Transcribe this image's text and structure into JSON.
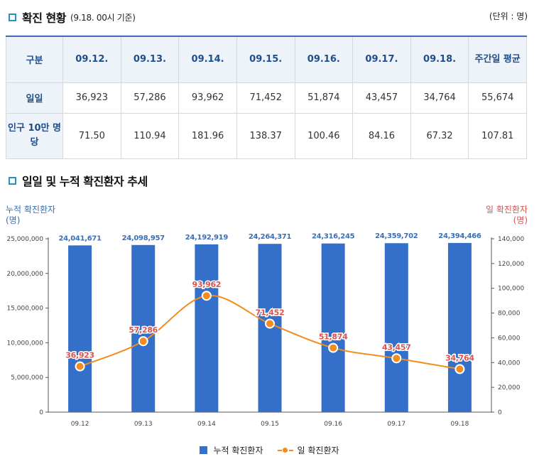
{
  "status": {
    "title": "확진 현황",
    "subtitle": "(9.18. 00시 기준)",
    "unit": "(단위 : 명)"
  },
  "table": {
    "headers": [
      "구분",
      "09.12.",
      "09.13.",
      "09.14.",
      "09.15.",
      "09.16.",
      "09.17.",
      "09.18.",
      "주간일 평균"
    ],
    "rows": [
      {
        "label": "일일",
        "values": [
          "36,923",
          "57,286",
          "93,962",
          "71,452",
          "51,874",
          "43,457",
          "34,764",
          "55,674"
        ]
      },
      {
        "label": "인구 10만 명 당",
        "values": [
          "71.50",
          "110.94",
          "181.96",
          "138.37",
          "100.46",
          "84.16",
          "67.32",
          "107.81"
        ]
      }
    ]
  },
  "trend": {
    "title": "일일 및 누적 확진환자 추세",
    "left_axis_title": "누적 확진환자",
    "left_axis_unit": "(명)",
    "right_axis_title": "일 확진환자",
    "right_axis_unit": "(명)"
  },
  "chart_data": {
    "type": "bar+line",
    "categories": [
      "09.12",
      "09.13",
      "09.14",
      "09.15",
      "09.16",
      "09.17",
      "09.18"
    ],
    "series": [
      {
        "name": "누적 확진환자",
        "type": "bar",
        "axis": "left",
        "values": [
          24041671,
          24098957,
          24192919,
          24264371,
          24316245,
          24359702,
          24394466
        ],
        "labels": [
          "24,041,671",
          "24,098,957",
          "24,192,919",
          "24,264,371",
          "24,316,245",
          "24,359,702",
          "24,394,466"
        ],
        "color": "#3470c9"
      },
      {
        "name": "일 확진환자",
        "type": "line",
        "axis": "right",
        "values": [
          36923,
          57286,
          93962,
          71452,
          51874,
          43457,
          34764
        ],
        "labels": [
          "36,923",
          "57,286",
          "93,962",
          "71,452",
          "51,874",
          "43,457",
          "34,764"
        ],
        "color": "#f28c1e",
        "label_color": "#d9534f"
      }
    ],
    "left_ylim": [
      0,
      25000000
    ],
    "left_ticks": [
      0,
      5000000,
      10000000,
      15000000,
      20000000,
      25000000
    ],
    "left_tick_labels": [
      "0",
      "5,000,000",
      "10,000,000",
      "15,000,000",
      "20,000,000",
      "25,000,000"
    ],
    "right_ylim": [
      0,
      140000
    ],
    "right_ticks": [
      0,
      20000,
      40000,
      60000,
      80000,
      100000,
      120000,
      140000
    ],
    "right_tick_labels": [
      "0",
      "20,000",
      "40,000",
      "60,000",
      "80,000",
      "100,000",
      "120,000",
      "140,000"
    ],
    "legend": [
      "누적 확진환자",
      "일 확진환자"
    ]
  }
}
